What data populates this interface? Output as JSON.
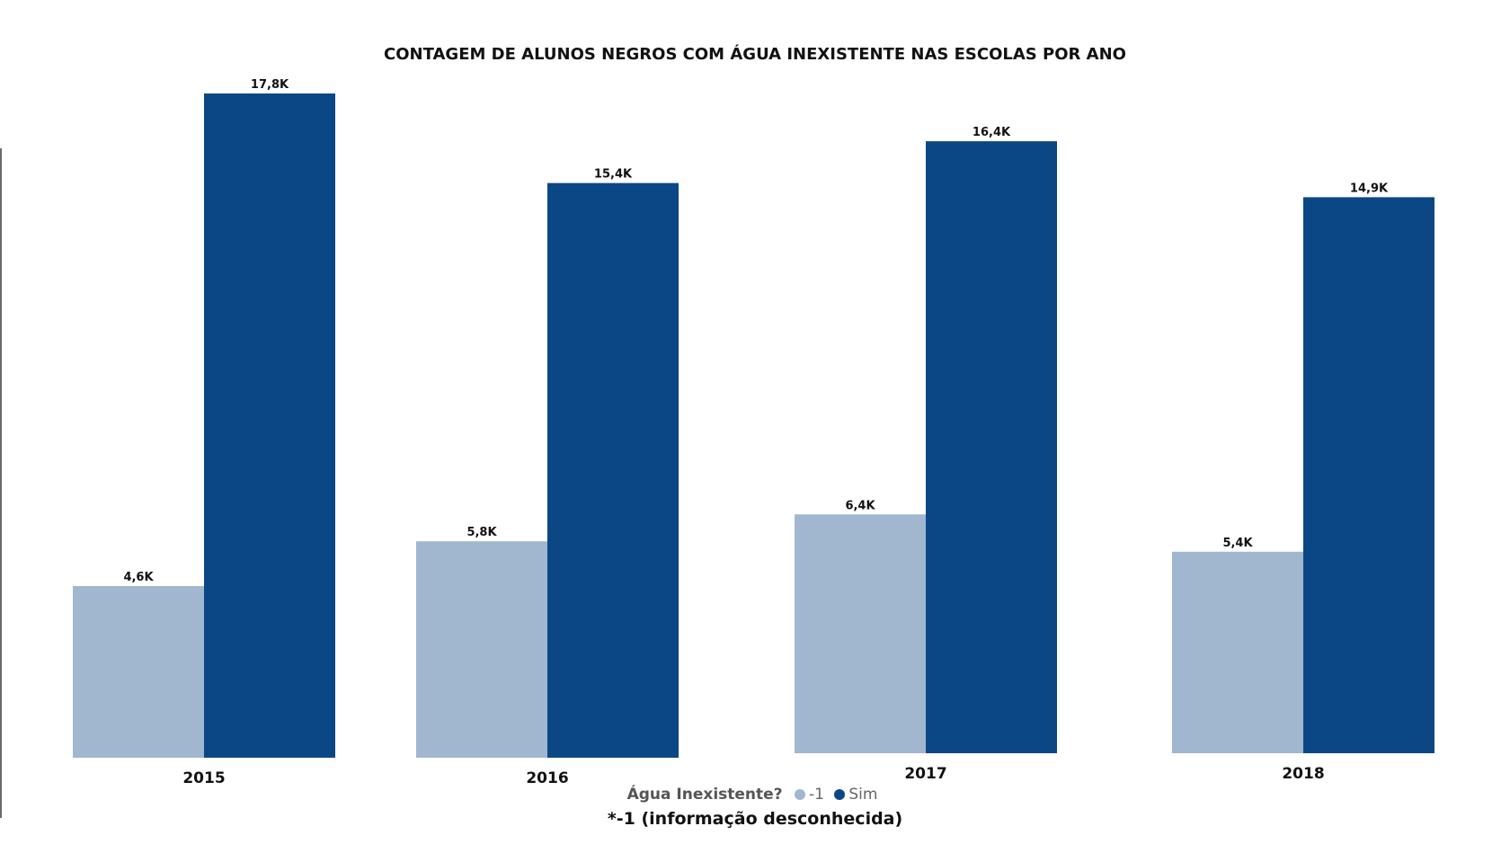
{
  "chart_data": {
    "type": "bar",
    "title": "CONTAGEM DE ALUNOS NEGROS COM ÁGUA INEXISTENTE NAS ESCOLAS POR ANO",
    "categories": [
      "2015",
      "2016",
      "2017",
      "2018"
    ],
    "series": [
      {
        "name": "-1",
        "color": "#a1b6cf",
        "values": [
          4.6,
          5.8,
          6.4,
          5.4
        ],
        "labels": [
          "4,6K",
          "5,8K",
          "6,4K",
          "5,4K"
        ]
      },
      {
        "name": "Sim",
        "color": "#0b4785",
        "values": [
          17.8,
          15.4,
          16.4,
          14.9
        ],
        "labels": [
          "17,8K",
          "15,4K",
          "16,4K",
          "14,9K"
        ]
      }
    ],
    "unit": "K",
    "ylim": [
      0,
      17.8
    ],
    "legend": {
      "title": "Água Inexistente?",
      "position": "bottom"
    },
    "footnote": "*-1 (informação desconhecida)"
  }
}
